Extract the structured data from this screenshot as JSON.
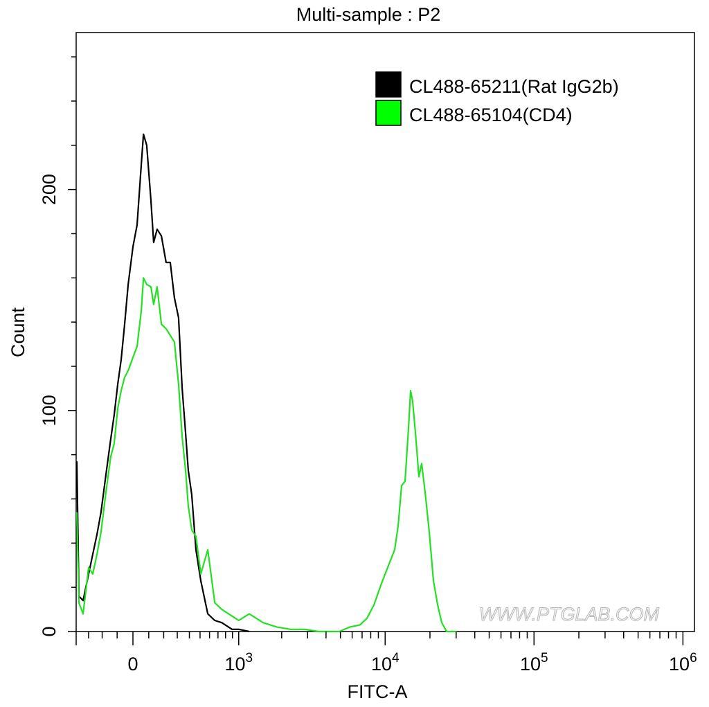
{
  "chart_data": {
    "type": "line",
    "title": "Multi-sample : P2",
    "xlabel": "FITC-A",
    "ylabel": "Count",
    "x_scale": "biexponential",
    "xlim": [
      -400,
      1000000
    ],
    "ylim": [
      0,
      271
    ],
    "x_ticks": [
      {
        "value": 0,
        "label": "0"
      },
      {
        "value": 1000,
        "base": "10",
        "exp": "3"
      },
      {
        "value": 10000,
        "base": "10",
        "exp": "4"
      },
      {
        "value": 100000,
        "base": "10",
        "exp": "5"
      },
      {
        "value": 1000000,
        "base": "10",
        "exp": "6"
      }
    ],
    "y_ticks": [
      {
        "value": 0,
        "label": "0"
      },
      {
        "value": 100,
        "label": "100"
      },
      {
        "value": 200,
        "label": "200"
      }
    ],
    "grid": false,
    "legend_position": "top-right",
    "watermark": "WWW.PTGLAB.COM",
    "series": [
      {
        "name": "CL488-65211(Rat IgG2b)",
        "color": "#000000",
        "x": [
          -397,
          -379,
          -344,
          -300,
          -268,
          -237,
          -208,
          -174,
          -142,
          -119,
          -96,
          -74,
          -52,
          -30,
          0,
          26,
          52,
          66,
          87,
          114,
          132,
          155,
          184,
          217,
          247,
          278,
          310,
          339,
          367,
          390,
          421,
          460,
          507,
          581,
          661,
          749,
          893,
          1000,
          1190
        ],
        "y": [
          77,
          16,
          14,
          26,
          35,
          44,
          54,
          71,
          87,
          98,
          112,
          123,
          139,
          157,
          174,
          184,
          211,
          225,
          220,
          195,
          176,
          182,
          179,
          167,
          167,
          151,
          142,
          110,
          90,
          73,
          62,
          37,
          23,
          8,
          5,
          4,
          1,
          1,
          0
        ]
      },
      {
        "name": "CL488-65104(CD4)",
        "color": "#22e022",
        "legend_color": "#00ff00",
        "x": [
          -397,
          -379,
          -344,
          -300,
          -268,
          -237,
          -208,
          -174,
          -142,
          -119,
          -96,
          -74,
          -52,
          -30,
          0,
          26,
          52,
          66,
          87,
          114,
          132,
          155,
          184,
          217,
          247,
          278,
          310,
          339,
          367,
          390,
          421,
          460,
          507,
          581,
          661,
          749,
          893,
          1000,
          1190,
          1489,
          1855,
          2308,
          2877,
          3566,
          4920,
          5770,
          6780,
          7550,
          8400,
          9360,
          10410,
          11590,
          12230,
          12900,
          13610,
          14350,
          14820,
          15300,
          15970,
          16860,
          17600,
          18560,
          19790,
          21110,
          22520,
          24000,
          25860,
          30380
        ],
        "y": [
          54,
          13,
          8,
          29,
          26,
          35,
          45,
          63,
          79,
          85,
          101,
          109,
          115,
          118,
          124,
          129,
          145,
          160,
          157,
          156,
          148,
          156,
          139,
          137,
          134,
          131,
          112,
          88,
          73,
          57,
          46,
          43,
          26,
          37,
          13,
          10,
          7,
          5,
          8,
          4,
          2,
          1,
          1,
          0,
          0,
          2,
          3,
          6,
          12,
          21,
          29,
          37,
          48,
          66,
          68,
          92,
          109,
          104,
          90,
          70,
          76,
          63,
          45,
          23,
          12,
          4,
          0,
          0
        ]
      }
    ]
  }
}
